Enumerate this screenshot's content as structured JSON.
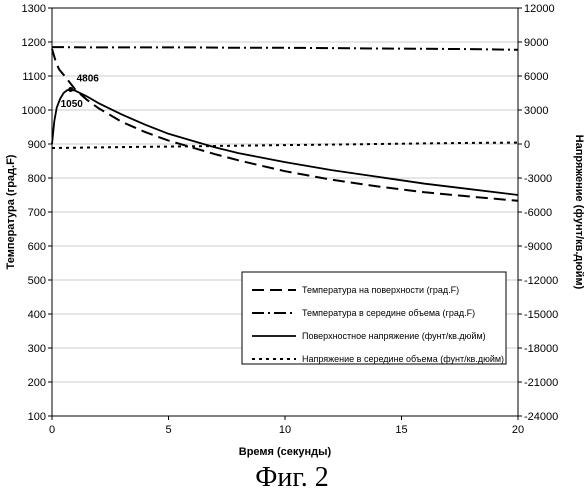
{
  "chart_data": {
    "type": "line",
    "x_label": "Время (секунды)",
    "y_left_label": "Температура (град.F)",
    "y_right_label": "Напряжение (фунт/кв.дюйм)",
    "x_range": [
      0,
      20
    ],
    "y_left_range": [
      100,
      1300
    ],
    "y_right_range": [
      -24000,
      12000
    ],
    "x_ticks": [
      "0",
      "5",
      "10",
      "15",
      "20"
    ],
    "y_left_ticks": [
      "100",
      "200",
      "300",
      "400",
      "500",
      "600",
      "700",
      "800",
      "900",
      "1000",
      "1100",
      "1200",
      "1300"
    ],
    "y_right_ticks": [
      "-24000",
      "-21000",
      "-18000",
      "-15000",
      "-12000",
      "-9000",
      "-6000",
      "-3000",
      "0",
      "3000",
      "6000",
      "9000",
      "12000"
    ],
    "grid": "horizontal",
    "legend_position": "lower-right",
    "series": [
      {
        "name": "Температура на поверхности (град.F)",
        "axis": "left",
        "style": "long-dash",
        "x": [
          0,
          0.15,
          0.3,
          0.6,
          1,
          1.5,
          2,
          3,
          4,
          5,
          6,
          7,
          8,
          9,
          10,
          12,
          14,
          16,
          18,
          20
        ],
        "y": [
          1180,
          1145,
          1120,
          1095,
          1060,
          1030,
          1005,
          965,
          935,
          910,
          890,
          870,
          852,
          836,
          820,
          795,
          775,
          758,
          745,
          733
        ]
      },
      {
        "name": "Температура в середине объема (град.F)",
        "axis": "left",
        "style": "dash-dot",
        "x": [
          0,
          2,
          4,
          6,
          8,
          10,
          12,
          14,
          16,
          18,
          20
        ],
        "y": [
          1185,
          1184,
          1184,
          1184,
          1183,
          1183,
          1182,
          1181,
          1180,
          1179,
          1177
        ]
      },
      {
        "name": "Поверхностное напряжение (фунт/кв.дюйм)",
        "axis": "right",
        "style": "solid",
        "x": [
          0,
          0.1,
          0.2,
          0.35,
          0.5,
          0.65,
          0.8,
          1,
          1.5,
          2,
          3,
          4,
          5,
          6,
          7,
          8,
          9,
          10,
          12,
          14,
          16,
          18,
          20
        ],
        "y": [
          0,
          2000,
          3200,
          4000,
          4500,
          4750,
          4806,
          4700,
          4200,
          3600,
          2600,
          1700,
          900,
          300,
          -300,
          -800,
          -1200,
          -1600,
          -2300,
          -2900,
          -3500,
          -4000,
          -4500
        ]
      },
      {
        "name": "Напряжение в середине объема (фунт/кв.дюйм)",
        "axis": "right",
        "style": "dotted",
        "x": [
          0,
          2,
          4,
          6,
          8,
          10,
          12,
          14,
          16,
          18,
          20
        ],
        "y": [
          -350,
          -300,
          -250,
          -200,
          -150,
          -100,
          -50,
          0,
          50,
          100,
          120
        ]
      }
    ],
    "annotations": [
      {
        "text": "4806",
        "x": 0.8,
        "y": 4806,
        "axis": "right"
      },
      {
        "text": "1050",
        "x": 0.8,
        "y": 1050,
        "axis": "left"
      }
    ]
  },
  "caption": "Фиг. 2"
}
